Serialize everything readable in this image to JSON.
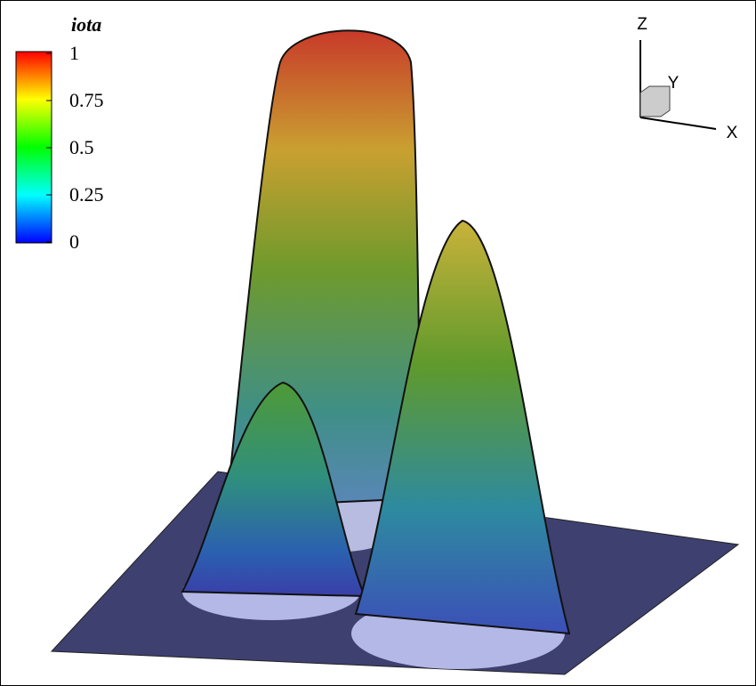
{
  "chart_data": {
    "type": "surface",
    "colorbar": {
      "title": "iota",
      "lim": [
        0,
        1
      ],
      "ticks": [
        0,
        0.25,
        0.5,
        0.75,
        1
      ],
      "colormap": [
        "#0000ff",
        "#00ffff",
        "#00ff00",
        "#ffff00",
        "#ff0000"
      ]
    },
    "axes_labels": {
      "x": "X",
      "y": "Y",
      "z": "Z"
    }
  }
}
